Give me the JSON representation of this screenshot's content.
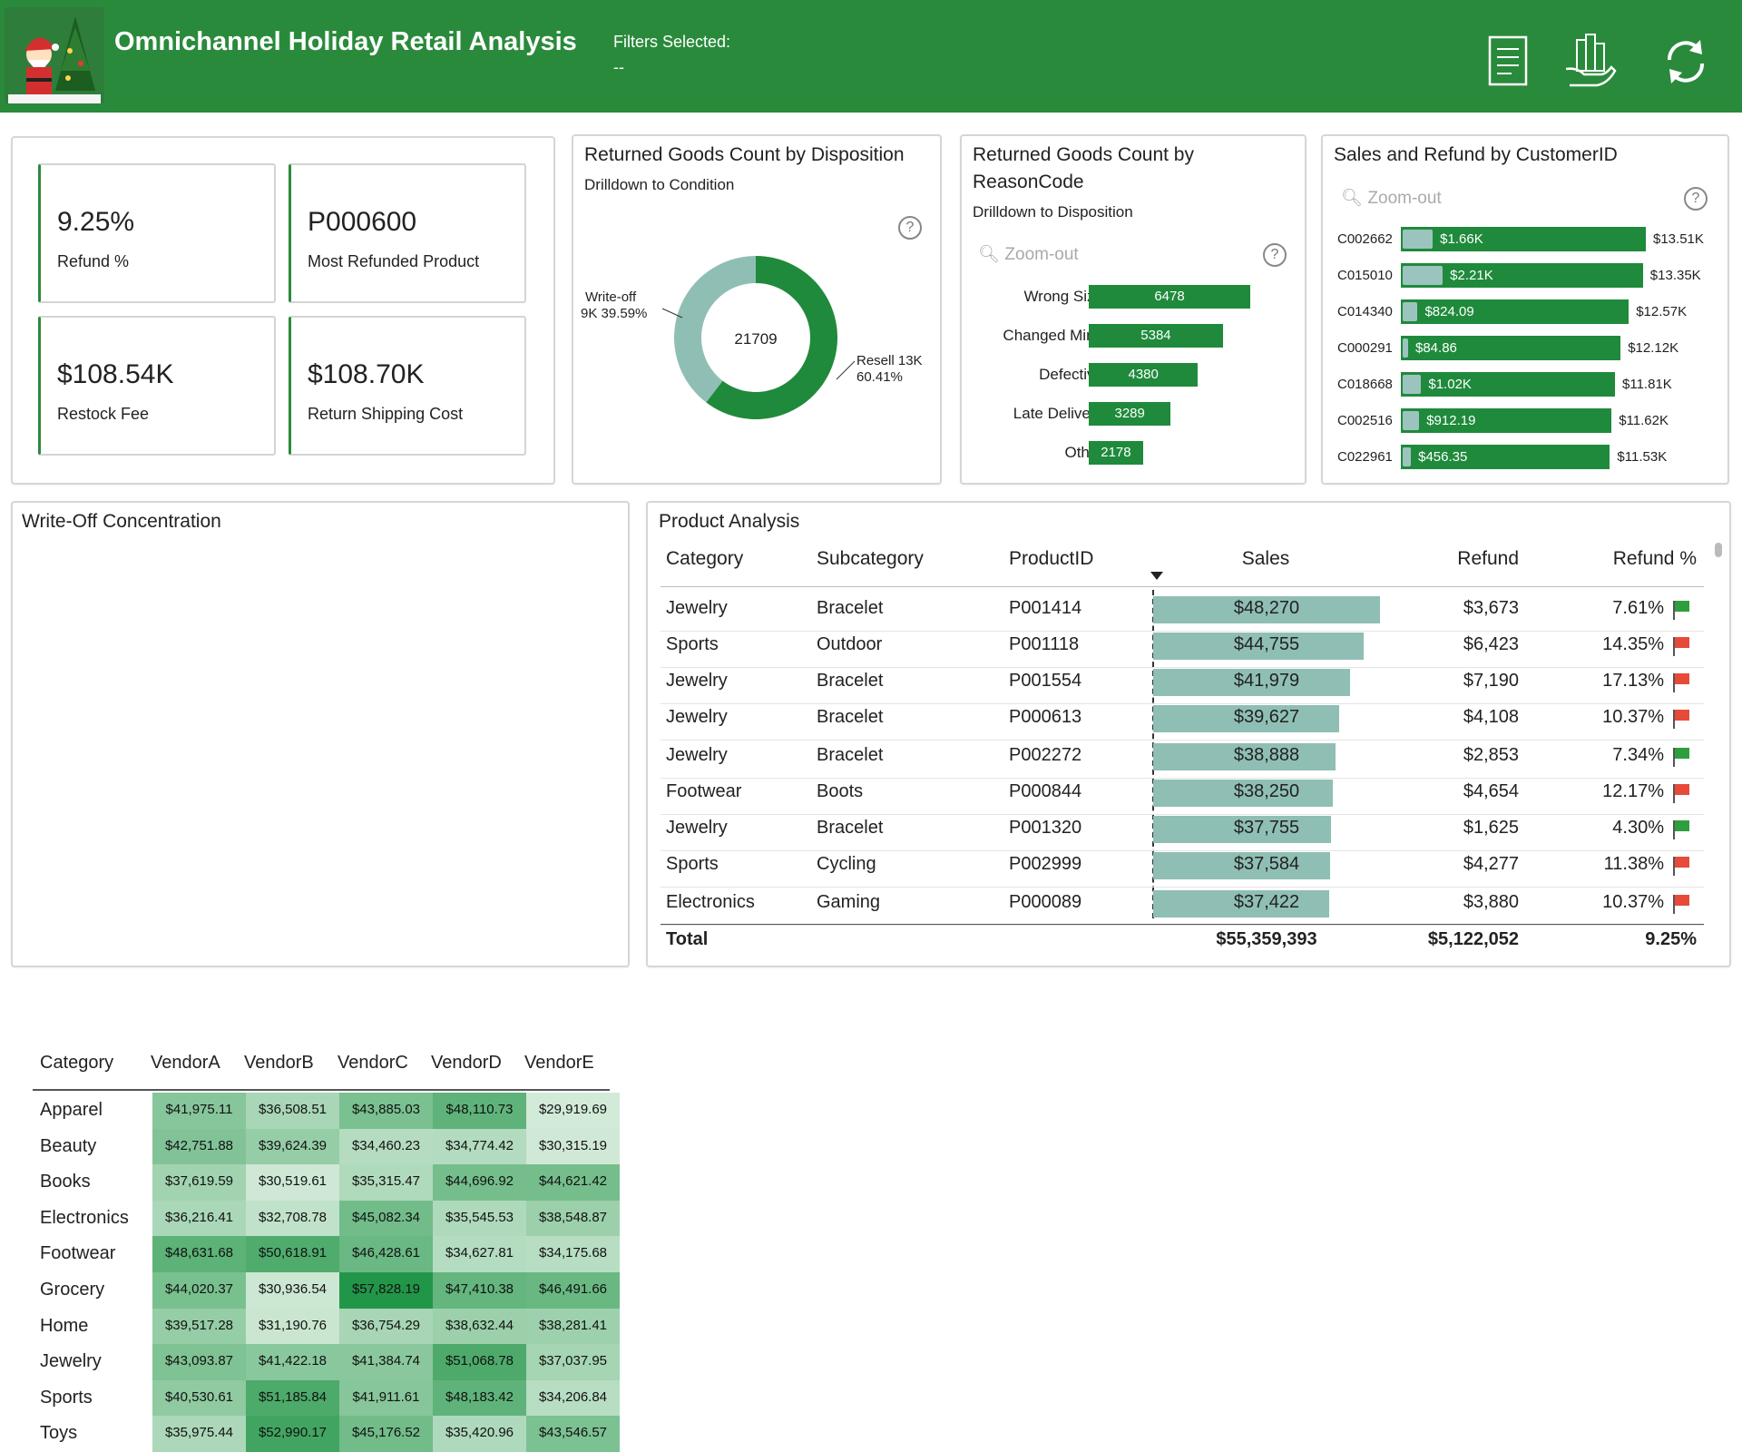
{
  "header": {
    "title": "Omnichannel Holiday Retail Analysis",
    "filters_label": "Filters Selected:",
    "filters_value": "--"
  },
  "kpis": [
    {
      "value": "9.25%",
      "label": "Refund %"
    },
    {
      "value": "P000600",
      "label": "Most Refunded Product"
    },
    {
      "value": "$108.54K",
      "label": "Restock Fee"
    },
    {
      "value": "$108.70K",
      "label": "Return Shipping Cost"
    }
  ],
  "disposition": {
    "title": "Returned Goods Count by Disposition",
    "subtitle": "Drilldown to Condition",
    "total": "21709",
    "writeoff_label": "Write-off",
    "writeoff_detail": "9K 39.59%",
    "resell_label": "Resell 13K",
    "resell_detail": "60.41%",
    "writeoff_pct": 39.59,
    "resell_pct": 60.41,
    "colors": {
      "resell": "#1f8a3b",
      "writeoff": "#8fbfb4"
    }
  },
  "reasons": {
    "title_line1": "Returned Goods Count by",
    "title_line2": "ReasonCode",
    "subtitle": "Drilldown to Disposition",
    "zoom_label": "Zoom-out",
    "items": [
      {
        "label": "Wrong Size",
        "value": "6478",
        "n": 6478
      },
      {
        "label": "Changed Mind",
        "value": "5384",
        "n": 5384
      },
      {
        "label": "Defective",
        "value": "4380",
        "n": 4380
      },
      {
        "label": "Late Delivery",
        "value": "3289",
        "n": 3289
      },
      {
        "label": "Other",
        "value": "2178",
        "n": 2178
      }
    ]
  },
  "customers": {
    "title": "Sales and Refund by CustomerID",
    "zoom_label": "Zoom-out",
    "items": [
      {
        "id": "C002662",
        "refund": "$1.66K",
        "sales": "$13.51K",
        "r": 1660,
        "s": 13510
      },
      {
        "id": "C015010",
        "refund": "$2.21K",
        "sales": "$13.35K",
        "r": 2210,
        "s": 13350
      },
      {
        "id": "C014340",
        "refund": "$824.09",
        "sales": "$12.57K",
        "r": 824.09,
        "s": 12570
      },
      {
        "id": "C000291",
        "refund": "$84.86",
        "sales": "$12.12K",
        "r": 84.86,
        "s": 12120
      },
      {
        "id": "C018668",
        "refund": "$1.02K",
        "sales": "$11.81K",
        "r": 1020,
        "s": 11810
      },
      {
        "id": "C002516",
        "refund": "$912.19",
        "sales": "$11.62K",
        "r": 912.19,
        "s": 11620
      },
      {
        "id": "C022961",
        "refund": "$456.35",
        "sales": "$11.53K",
        "r": 456.35,
        "s": 11530
      }
    ]
  },
  "writeoff": {
    "title": "Write-Off Concentration",
    "corner": "Category",
    "vendors": [
      "VendorA",
      "VendorB",
      "VendorC",
      "VendorD",
      "VendorE"
    ],
    "rows": [
      {
        "category": "Apparel",
        "values": [
          "$41,975.11",
          "$36,508.51",
          "$43,885.03",
          "$48,110.73",
          "$29,919.69"
        ],
        "n": [
          41975.11,
          36508.51,
          43885.03,
          48110.73,
          29919.69
        ]
      },
      {
        "category": "Beauty",
        "values": [
          "$42,751.88",
          "$39,624.39",
          "$34,460.23",
          "$34,774.42",
          "$30,315.19"
        ],
        "n": [
          42751.88,
          39624.39,
          34460.23,
          34774.42,
          30315.19
        ]
      },
      {
        "category": "Books",
        "values": [
          "$37,619.59",
          "$30,519.61",
          "$35,315.47",
          "$44,696.92",
          "$44,621.42"
        ],
        "n": [
          37619.59,
          30519.61,
          35315.47,
          44696.92,
          44621.42
        ]
      },
      {
        "category": "Electronics",
        "values": [
          "$36,216.41",
          "$32,708.78",
          "$45,082.34",
          "$35,545.53",
          "$38,548.87"
        ],
        "n": [
          36216.41,
          32708.78,
          45082.34,
          35545.53,
          38548.87
        ]
      },
      {
        "category": "Footwear",
        "values": [
          "$48,631.68",
          "$50,618.91",
          "$46,428.61",
          "$34,627.81",
          "$34,175.68"
        ],
        "n": [
          48631.68,
          50618.91,
          46428.61,
          34627.81,
          34175.68
        ]
      },
      {
        "category": "Grocery",
        "values": [
          "$44,020.37",
          "$30,936.54",
          "$57,828.19",
          "$47,410.38",
          "$46,491.66"
        ],
        "n": [
          44020.37,
          30936.54,
          57828.19,
          47410.38,
          46491.66
        ]
      },
      {
        "category": "Home",
        "values": [
          "$39,517.28",
          "$31,190.76",
          "$36,754.29",
          "$38,632.44",
          "$38,281.41"
        ],
        "n": [
          39517.28,
          31190.76,
          36754.29,
          38632.44,
          38281.41
        ]
      },
      {
        "category": "Jewelry",
        "values": [
          "$43,093.87",
          "$41,422.18",
          "$41,384.74",
          "$51,068.78",
          "$37,037.95"
        ],
        "n": [
          43093.87,
          41422.18,
          41384.74,
          51068.78,
          37037.95
        ]
      },
      {
        "category": "Sports",
        "values": [
          "$40,530.61",
          "$51,185.84",
          "$41,911.61",
          "$48,183.42",
          "$34,206.84"
        ],
        "n": [
          40530.61,
          51185.84,
          41911.61,
          48183.42,
          34206.84
        ]
      },
      {
        "category": "Toys",
        "values": [
          "$35,975.44",
          "$52,990.17",
          "$45,176.52",
          "$35,420.96",
          "$43,546.57"
        ],
        "n": [
          35975.44,
          52990.17,
          45176.52,
          35420.96,
          43546.57
        ]
      }
    ]
  },
  "products": {
    "title": "Product Analysis",
    "columns": [
      "Category",
      "Subcategory",
      "ProductID",
      "Sales",
      "Refund",
      "Refund %"
    ],
    "rows": [
      {
        "category": "Jewelry",
        "subcategory": "Bracelet",
        "product": "P001414",
        "sales": "$48,270",
        "refund": "$3,673",
        "pct": "7.61%",
        "s": 48270,
        "flag": "green"
      },
      {
        "category": "Sports",
        "subcategory": "Outdoor",
        "product": "P001118",
        "sales": "$44,755",
        "refund": "$6,423",
        "pct": "14.35%",
        "s": 44755,
        "flag": "red"
      },
      {
        "category": "Jewelry",
        "subcategory": "Bracelet",
        "product": "P001554",
        "sales": "$41,979",
        "refund": "$7,190",
        "pct": "17.13%",
        "s": 41979,
        "flag": "red"
      },
      {
        "category": "Jewelry",
        "subcategory": "Bracelet",
        "product": "P000613",
        "sales": "$39,627",
        "refund": "$4,108",
        "pct": "10.37%",
        "s": 39627,
        "flag": "red"
      },
      {
        "category": "Jewelry",
        "subcategory": "Bracelet",
        "product": "P002272",
        "sales": "$38,888",
        "refund": "$2,853",
        "pct": "7.34%",
        "s": 38888,
        "flag": "green"
      },
      {
        "category": "Footwear",
        "subcategory": "Boots",
        "product": "P000844",
        "sales": "$38,250",
        "refund": "$4,654",
        "pct": "12.17%",
        "s": 38250,
        "flag": "red"
      },
      {
        "category": "Jewelry",
        "subcategory": "Bracelet",
        "product": "P001320",
        "sales": "$37,755",
        "refund": "$1,625",
        "pct": "4.30%",
        "s": 37755,
        "flag": "green"
      },
      {
        "category": "Sports",
        "subcategory": "Cycling",
        "product": "P002999",
        "sales": "$37,584",
        "refund": "$4,277",
        "pct": "11.38%",
        "s": 37584,
        "flag": "red"
      },
      {
        "category": "Electronics",
        "subcategory": "Gaming",
        "product": "P000089",
        "sales": "$37,422",
        "refund": "$3,880",
        "pct": "10.37%",
        "s": 37422,
        "flag": "red"
      }
    ],
    "total": {
      "label": "Total",
      "sales": "$55,359,393",
      "refund": "$5,122,052",
      "pct": "9.25%"
    }
  }
}
